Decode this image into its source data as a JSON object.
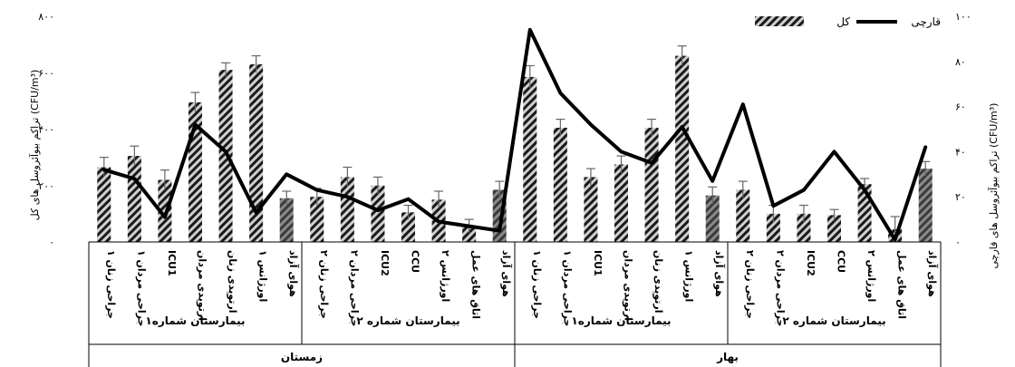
{
  "chart_data": {
    "type": "bar",
    "categories": [
      "جراحی زنان ۱",
      "جراحی مردان ۱",
      "ICU1",
      "ارتوپدی مردان",
      "ارتوپدی زنان",
      "اورژانس ۱",
      "هوای آزاد",
      "جراحی زنان ۲",
      "جراحی مردان ۲",
      "ICU2",
      "CCU",
      "اورژانس ۲",
      "اتاق های عمل",
      "هوای آزاد",
      "جراحی زنان ۱",
      "جراحی مردان ۱",
      "ICU1",
      "ارتوپدی مردان",
      "ارتوپدی زنان",
      "اورژانس ۱",
      "هوای آزاد",
      "جراحی زنان ۲",
      "جراحی مردان ۲",
      "ICU2",
      "CCU",
      "اورژانس ۲",
      "اتاق های عمل",
      "هوای آزاد"
    ],
    "hospital_groups": [
      {
        "label": "بیمارستان شماره۱",
        "count": 7
      },
      {
        "label": "بیمارستان شماره ۲",
        "count": 7
      },
      {
        "label": "بیمارستان شماره۱",
        "count": 7
      },
      {
        "label": "بیمارستان شماره ۲",
        "count": 7
      }
    ],
    "season_groups": [
      {
        "label": "زمستان",
        "count": 14
      },
      {
        "label": "بهار",
        "count": 14
      }
    ],
    "series": [
      {
        "name": "کل",
        "kind": "bar",
        "axis": "left",
        "values": [
          265,
          305,
          220,
          495,
          610,
          630,
          155,
          160,
          230,
          200,
          105,
          150,
          55,
          185,
          585,
          405,
          230,
          275,
          405,
          660,
          165,
          185,
          100,
          100,
          95,
          205,
          45,
          260
        ],
        "errors": [
          35,
          35,
          35,
          35,
          25,
          30,
          25,
          30,
          35,
          30,
          25,
          30,
          25,
          30,
          40,
          30,
          30,
          30,
          30,
          35,
          30,
          30,
          30,
          30,
          20,
          20,
          45,
          25
        ],
        "outdoor_indices": [
          6,
          13,
          20,
          27
        ]
      },
      {
        "name": "قارچی",
        "kind": "line",
        "axis": "right",
        "values": [
          32,
          28,
          11,
          52,
          40,
          13,
          30,
          23,
          20,
          14,
          19,
          9,
          7,
          5,
          94,
          66,
          52,
          40,
          35,
          51,
          27,
          61,
          16,
          23,
          40,
          23,
          1,
          42
        ]
      }
    ],
    "left_axis": {
      "ylim": [
        0,
        800
      ],
      "ticks": [
        "۰",
        "۲۰۰",
        "۴۰۰",
        "۶۰۰",
        "۸۰۰"
      ],
      "label": "تراکم بیوآئروسل های کل (CFU/m³)"
    },
    "right_axis": {
      "ylim": [
        0,
        100
      ],
      "ticks": [
        "۰",
        "۲۰",
        "۴۰",
        "۶۰",
        "۸۰",
        "۱۰۰"
      ],
      "label": "تراکم بیوآئروسل های قارچی (CFU/m³)"
    },
    "legend": {
      "placement": "top-right",
      "items": [
        "قارچی",
        "کل"
      ]
    },
    "grid": false,
    "colors": {
      "hatch_dark": "#1a1a1a",
      "hatch_light": "#cfcfcf",
      "outdoor_dark": "#4a4a4a",
      "line": "#000000",
      "frame": "#000000"
    }
  }
}
